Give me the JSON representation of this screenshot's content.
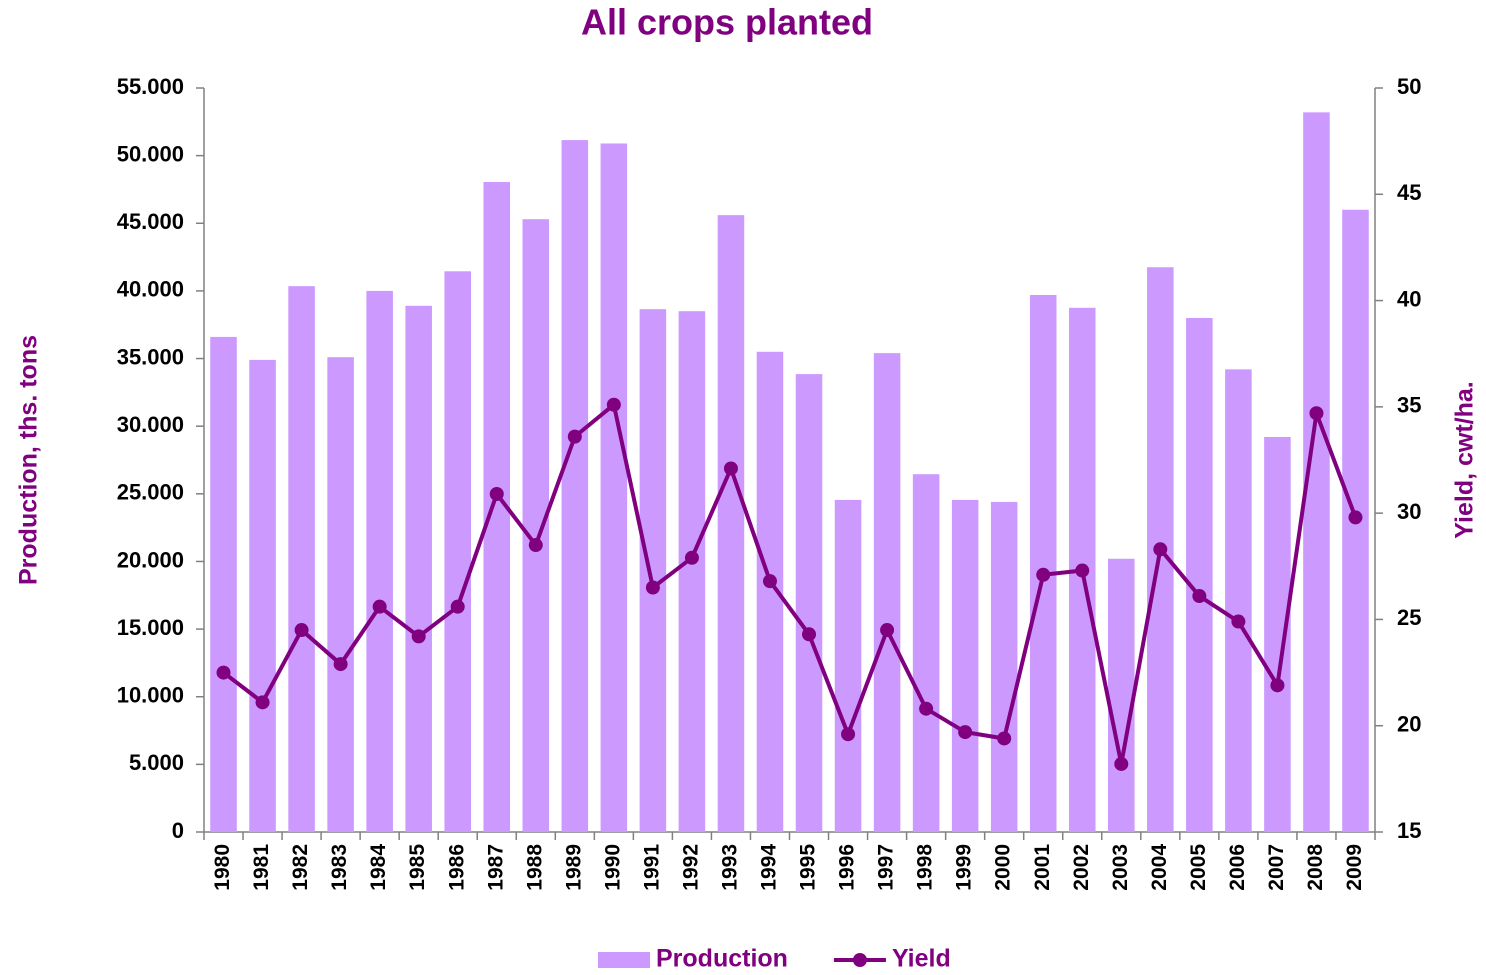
{
  "chart_data": {
    "type": "bar_line",
    "title": "All crops planted",
    "ylabel": "Production, ths. tons",
    "y2label": "Yield, cwt/ha.",
    "categories": [
      "1980",
      "1981",
      "1982",
      "1983",
      "1984",
      "1985",
      "1986",
      "1987",
      "1988",
      "1989",
      "1990",
      "1991",
      "1992",
      "1993",
      "1994",
      "1995",
      "1996",
      "1997",
      "1998",
      "1999",
      "2000",
      "2001",
      "2002",
      "2003",
      "2004",
      "2005",
      "2006",
      "2007",
      "2008",
      "2009"
    ],
    "series": [
      {
        "name": "Production",
        "type": "bar",
        "color": "#cc99ff",
        "axis": "y",
        "values": [
          36600,
          34900,
          40350,
          35100,
          40000,
          38900,
          41450,
          48050,
          45300,
          51150,
          50900,
          38650,
          38500,
          45600,
          35500,
          33850,
          24550,
          35400,
          26450,
          24550,
          24400,
          39700,
          38750,
          20200,
          41750,
          38000,
          34200,
          29200,
          53200,
          46000
        ]
      },
      {
        "name": "Yield",
        "type": "line",
        "color": "#800080",
        "axis": "y2",
        "values": [
          22.5,
          21.1,
          24.5,
          22.9,
          25.6,
          24.2,
          25.6,
          30.9,
          28.5,
          33.6,
          35.1,
          26.5,
          27.9,
          32.1,
          26.8,
          24.3,
          19.6,
          24.5,
          20.8,
          19.7,
          19.4,
          27.1,
          27.3,
          18.2,
          28.3,
          26.1,
          24.9,
          21.9,
          34.7,
          29.8
        ]
      }
    ],
    "ylim": [
      0,
      55000
    ],
    "yticks": [
      0,
      {
        "value": 5000,
        "label": "5.000"
      },
      {
        "value": 10000,
        "label": "10.000"
      },
      {
        "value": 15000,
        "label": "15.000"
      },
      {
        "value": 20000,
        "label": "20.000"
      },
      {
        "value": 25000,
        "label": "25.000"
      },
      {
        "value": 30000,
        "label": "30.000"
      },
      {
        "value": 35000,
        "label": "35.000"
      },
      {
        "value": 40000,
        "label": "40.000"
      },
      {
        "value": 45000,
        "label": "45.000"
      },
      {
        "value": 50000,
        "label": "50.000"
      },
      {
        "value": 55000,
        "label": "55.000"
      }
    ],
    "y2lim": [
      15,
      50
    ],
    "y2ticks": [
      15,
      20,
      25,
      30,
      35,
      40,
      45,
      50
    ],
    "legend": "bottom"
  }
}
